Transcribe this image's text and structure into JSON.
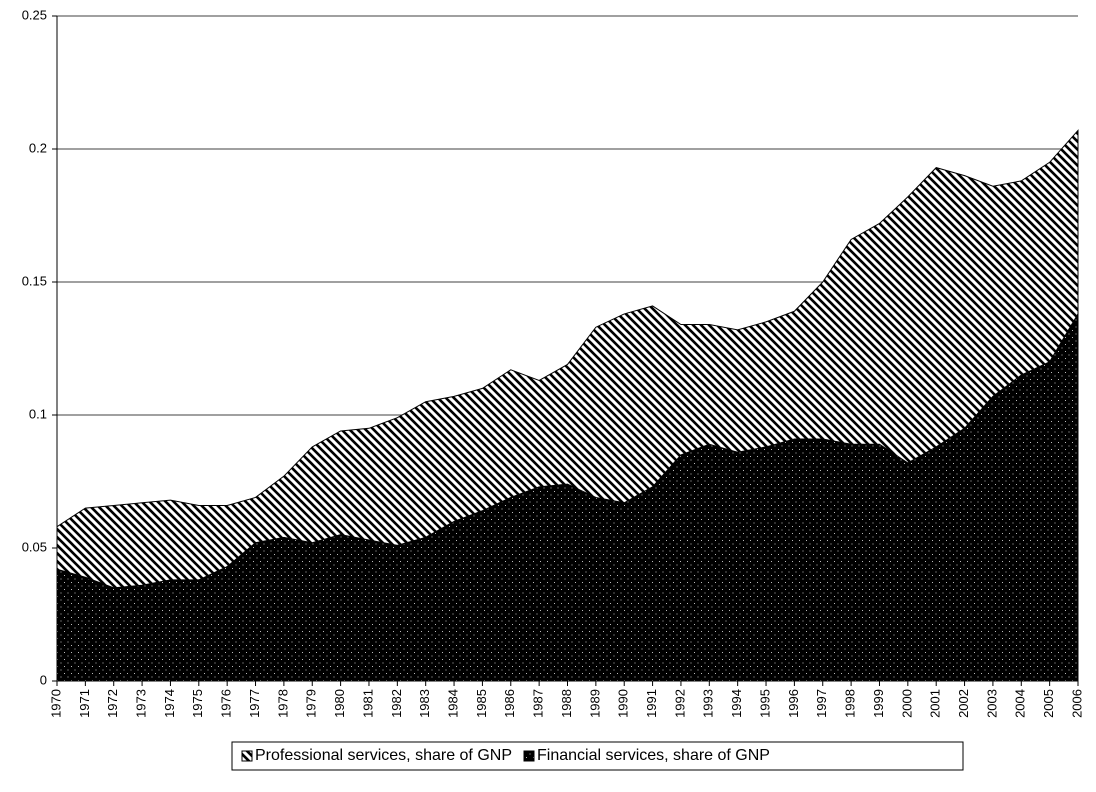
{
  "chart_data": {
    "type": "stacked_area",
    "categories": [
      "1970",
      "1971",
      "1972",
      "1973",
      "1974",
      "1975",
      "1976",
      "1977",
      "1978",
      "1979",
      "1980",
      "1981",
      "1982",
      "1983",
      "1984",
      "1985",
      "1986",
      "1987",
      "1988",
      "1989",
      "1990",
      "1991",
      "1992",
      "1993",
      "1994",
      "1995",
      "1996",
      "1997",
      "1998",
      "1999",
      "2000",
      "2001",
      "2002",
      "2003",
      "2004",
      "2005",
      "2006"
    ],
    "series": [
      {
        "name": "Professional services, share of GNP",
        "color": "#000000",
        "pattern": "stripes",
        "values": [
          0.016,
          0.026,
          0.031,
          0.031,
          0.03,
          0.028,
          0.023,
          0.017,
          0.023,
          0.036,
          0.039,
          0.042,
          0.048,
          0.051,
          0.047,
          0.046,
          0.048,
          0.04,
          0.045,
          0.064,
          0.071,
          0.068,
          0.049,
          0.045,
          0.046,
          0.047,
          0.048,
          0.059,
          0.077,
          0.083,
          0.1,
          0.105,
          0.095,
          0.079,
          0.073,
          0.075,
          0.069
        ]
      },
      {
        "name": "Financial services, share of GNP",
        "color": "#000000",
        "pattern": "dots",
        "values": [
          0.042,
          0.039,
          0.035,
          0.036,
          0.038,
          0.038,
          0.043,
          0.052,
          0.054,
          0.052,
          0.055,
          0.053,
          0.051,
          0.054,
          0.06,
          0.064,
          0.069,
          0.073,
          0.074,
          0.069,
          0.067,
          0.073,
          0.085,
          0.089,
          0.086,
          0.088,
          0.091,
          0.091,
          0.089,
          0.089,
          0.082,
          0.088,
          0.095,
          0.107,
          0.115,
          0.12,
          0.138
        ]
      }
    ],
    "ylim": [
      0,
      0.25
    ],
    "yticks": [
      0,
      0.05,
      0.1,
      0.15,
      0.2,
      0.25
    ],
    "grid": true,
    "legend": "bottom"
  }
}
